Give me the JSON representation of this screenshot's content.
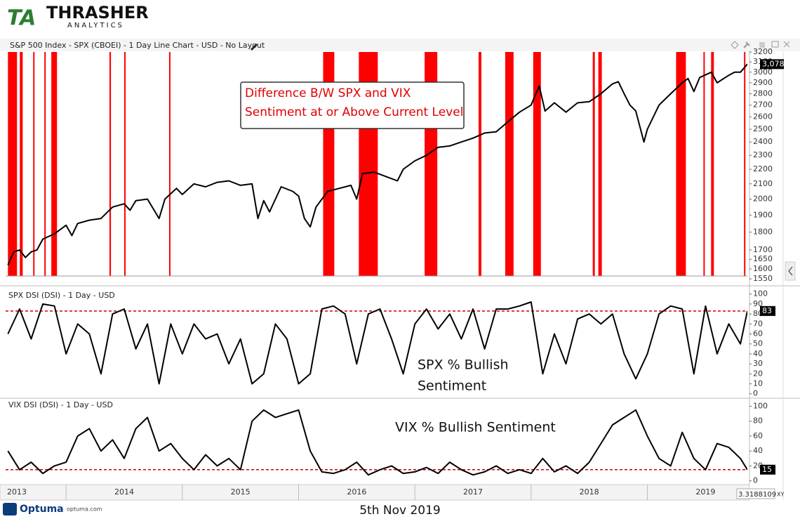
{
  "logo": {
    "mark": "TA",
    "name": "THRASHER",
    "sub": "ANALYTICS"
  },
  "footer": {
    "brand": "Optuma",
    "site": "optuma.com",
    "date": "5th Nov 2019",
    "readout": "3.3188109",
    "mode": "XY"
  },
  "x_axis": {
    "xlim": [
      2013.48,
      2019.86
    ],
    "xticks": [
      2013,
      2014,
      2015,
      2016,
      2017,
      2018,
      2019
    ]
  },
  "chart_data": [
    {
      "type": "line",
      "title": "S&P 500 Index - SPX (CBOEI) - 1 Day Line Chart - USD - No Layout",
      "annotation": [
        "Difference B/W SPX and VIX",
        "Sentiment at or Above Current Level"
      ],
      "log_scale": true,
      "color": "#000000",
      "ylim": [
        1540,
        3200
      ],
      "yticks": [
        1550,
        1600,
        1650,
        1700,
        1800,
        1900,
        2000,
        2100,
        2200,
        2300,
        2400,
        2500,
        2600,
        2700,
        2800,
        2900,
        3000,
        3100,
        3200
      ],
      "last_value": {
        "value": 3078,
        "label": "3,078"
      },
      "highlight_periods": {
        "color": "#ff0000",
        "starts": [
          2013.5,
          2013.602,
          2013.717,
          2013.813,
          2013.873,
          2014.373,
          2014.5,
          2014.886,
          2016.211,
          2016.518,
          2017.084,
          2017.548,
          2017.777,
          2018.018,
          2018.53,
          2018.578,
          2019.247,
          2019.482,
          2019.548,
          2019.831
        ],
        "ends": [
          2013.578,
          2013.627,
          2013.729,
          2013.825,
          2013.922,
          2014.386,
          2014.512,
          2014.898,
          2016.307,
          2016.681,
          2017.193,
          2017.572,
          2017.849,
          2018.084,
          2018.548,
          2018.608,
          2019.331,
          2019.494,
          2019.572,
          2019.843
        ]
      },
      "x": [
        2013.5,
        2013.55,
        2013.6,
        2013.65,
        2013.7,
        2013.75,
        2013.8,
        2013.9,
        2014.0,
        2014.05,
        2014.1,
        2014.2,
        2014.3,
        2014.4,
        2014.5,
        2014.55,
        2014.6,
        2014.7,
        2014.8,
        2014.85,
        2014.95,
        2015.0,
        2015.1,
        2015.2,
        2015.3,
        2015.4,
        2015.5,
        2015.6,
        2015.65,
        2015.7,
        2015.75,
        2015.85,
        2015.95,
        2016.0,
        2016.05,
        2016.1,
        2016.15,
        2016.25,
        2016.35,
        2016.45,
        2016.5,
        2016.55,
        2016.65,
        2016.75,
        2016.85,
        2016.9,
        2017.0,
        2017.1,
        2017.2,
        2017.3,
        2017.4,
        2017.5,
        2017.6,
        2017.7,
        2017.8,
        2017.9,
        2018.0,
        2018.07,
        2018.12,
        2018.2,
        2018.3,
        2018.4,
        2018.5,
        2018.6,
        2018.7,
        2018.75,
        2018.8,
        2018.85,
        2018.9,
        2018.97,
        2019.0,
        2019.1,
        2019.2,
        2019.3,
        2019.35,
        2019.4,
        2019.45,
        2019.55,
        2019.6,
        2019.7,
        2019.75,
        2019.8,
        2019.86
      ],
      "values": [
        1620,
        1690,
        1700,
        1660,
        1690,
        1700,
        1760,
        1790,
        1840,
        1780,
        1850,
        1870,
        1880,
        1950,
        1970,
        1930,
        1990,
        2000,
        1880,
        2000,
        2070,
        2030,
        2100,
        2080,
        2110,
        2120,
        2090,
        2100,
        1880,
        1990,
        1920,
        2080,
        2050,
        2020,
        1880,
        1830,
        1950,
        2050,
        2070,
        2090,
        2000,
        2170,
        2180,
        2150,
        2120,
        2200,
        2260,
        2300,
        2360,
        2370,
        2400,
        2430,
        2470,
        2480,
        2560,
        2640,
        2700,
        2870,
        2650,
        2720,
        2640,
        2720,
        2730,
        2800,
        2890,
        2910,
        2800,
        2700,
        2650,
        2400,
        2500,
        2700,
        2800,
        2900,
        2940,
        2820,
        2950,
        3000,
        2900,
        2970,
        3000,
        3000,
        3078
      ]
    },
    {
      "type": "line",
      "title": "SPX DSI (DSI) - 1 Day - USD",
      "annotation": [
        "SPX % Bullish",
        "Sentiment"
      ],
      "color": "#000000",
      "ylim": [
        -3,
        104
      ],
      "yticks": [
        0,
        10,
        20,
        30,
        40,
        50,
        60,
        70,
        80,
        90,
        100
      ],
      "reference_line": 83,
      "reference_color": "#cc0000",
      "last_value": 83,
      "x": [
        2013.5,
        2013.6,
        2013.7,
        2013.8,
        2013.9,
        2014.0,
        2014.1,
        2014.2,
        2014.3,
        2014.4,
        2014.5,
        2014.6,
        2014.7,
        2014.8,
        2014.9,
        2015.0,
        2015.1,
        2015.2,
        2015.3,
        2015.4,
        2015.5,
        2015.6,
        2015.7,
        2015.8,
        2015.9,
        2016.0,
        2016.1,
        2016.2,
        2016.3,
        2016.4,
        2016.5,
        2016.6,
        2016.7,
        2016.8,
        2016.9,
        2017.0,
        2017.1,
        2017.2,
        2017.3,
        2017.4,
        2017.5,
        2017.6,
        2017.7,
        2017.8,
        2017.9,
        2018.0,
        2018.1,
        2018.2,
        2018.3,
        2018.4,
        2018.5,
        2018.6,
        2018.7,
        2018.8,
        2018.9,
        2019.0,
        2019.1,
        2019.2,
        2019.3,
        2019.4,
        2019.5,
        2019.6,
        2019.7,
        2019.8,
        2019.86
      ],
      "values": [
        60,
        85,
        55,
        90,
        88,
        40,
        70,
        60,
        20,
        80,
        85,
        45,
        70,
        10,
        70,
        40,
        70,
        55,
        60,
        30,
        55,
        10,
        20,
        70,
        55,
        10,
        20,
        85,
        88,
        80,
        30,
        80,
        85,
        55,
        20,
        70,
        85,
        65,
        80,
        55,
        85,
        45,
        85,
        85,
        88,
        92,
        20,
        60,
        30,
        75,
        80,
        70,
        80,
        40,
        15,
        40,
        80,
        88,
        85,
        20,
        88,
        40,
        70,
        50,
        83
      ]
    },
    {
      "type": "line",
      "title": "VIX DSI (DSI) - 1 Day - USD",
      "annotation": [
        "VIX % Bullish Sentiment"
      ],
      "color": "#000000",
      "ylim": [
        -5,
        107
      ],
      "yticks": [
        0,
        20,
        40,
        60,
        80,
        100
      ],
      "reference_line": 15,
      "reference_color": "#cc0000",
      "last_value": 15,
      "x": [
        2013.5,
        2013.6,
        2013.7,
        2013.8,
        2013.9,
        2014.0,
        2014.1,
        2014.2,
        2014.3,
        2014.4,
        2014.5,
        2014.6,
        2014.7,
        2014.8,
        2014.9,
        2015.0,
        2015.1,
        2015.2,
        2015.3,
        2015.4,
        2015.5,
        2015.6,
        2015.7,
        2015.8,
        2015.9,
        2016.0,
        2016.1,
        2016.2,
        2016.3,
        2016.4,
        2016.5,
        2016.6,
        2016.7,
        2016.8,
        2016.9,
        2017.0,
        2017.1,
        2017.2,
        2017.3,
        2017.4,
        2017.5,
        2017.6,
        2017.7,
        2017.8,
        2017.9,
        2018.0,
        2018.1,
        2018.2,
        2018.3,
        2018.4,
        2018.5,
        2018.6,
        2018.7,
        2018.8,
        2018.9,
        2019.0,
        2019.1,
        2019.2,
        2019.3,
        2019.4,
        2019.5,
        2019.6,
        2019.7,
        2019.8,
        2019.86
      ],
      "values": [
        40,
        15,
        25,
        10,
        20,
        25,
        60,
        70,
        40,
        55,
        30,
        70,
        85,
        40,
        50,
        30,
        15,
        35,
        20,
        30,
        15,
        80,
        95,
        85,
        90,
        95,
        40,
        12,
        10,
        15,
        25,
        8,
        15,
        20,
        10,
        12,
        18,
        10,
        25,
        15,
        8,
        12,
        20,
        10,
        15,
        10,
        30,
        12,
        20,
        10,
        25,
        50,
        75,
        85,
        95,
        60,
        30,
        20,
        65,
        30,
        15,
        50,
        45,
        30,
        15
      ]
    }
  ]
}
